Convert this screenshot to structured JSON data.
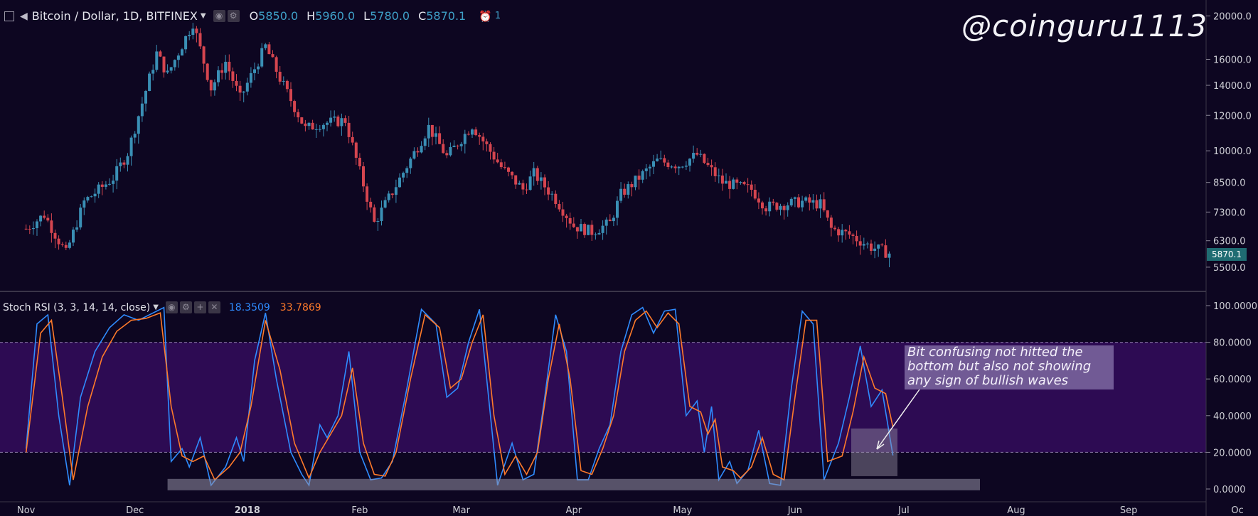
{
  "header": {
    "symbol": "Bitcoin / Dollar, 1D, BITFINEX",
    "o_label": "O",
    "o_value": "5850.0",
    "h_label": "H",
    "h_value": "5960.0",
    "l_label": "L",
    "l_value": "5780.0",
    "c_label": "C",
    "c_value": "5870.1",
    "alert_count": "1"
  },
  "watermark": "@coinguru1113",
  "indicator": {
    "label": "Stoch RSI (3, 3, 14, 14, close)",
    "k_value": "18.3509",
    "d_value": "33.7869"
  },
  "annotation": "Bit confusing not hitted the bottom but also not showing any sign of bullish waves",
  "colors": {
    "background": "#0d0621",
    "up": "#3a8fb5",
    "down": "#d5454f",
    "k_line": "#2f8cff",
    "d_line": "#ff7a2a",
    "band": "#2d0b53"
  },
  "chart_data": [
    {
      "type": "candlestick",
      "scale": "log",
      "x_labels": [
        "Nov",
        "Dec",
        "2018",
        "Feb",
        "Mar",
        "Apr",
        "May",
        "Jun",
        "Jul",
        "Aug",
        "Sep",
        "Oc"
      ],
      "y_ticks": [
        "20000.0",
        "16000.0",
        "14000.0",
        "12000.0",
        "10000.0",
        "8500.0",
        "7300.0",
        "6300.0",
        "5500.0"
      ],
      "last_price_label": "5870.1",
      "ylim": [
        5000,
        21000
      ],
      "close_path": [
        {
          "date": "2017-11-01",
          "close": 6700
        },
        {
          "date": "2017-11-06",
          "close": 7200
        },
        {
          "date": "2017-11-12",
          "close": 5900
        },
        {
          "date": "2017-11-17",
          "close": 7700
        },
        {
          "date": "2017-11-25",
          "close": 8700
        },
        {
          "date": "2017-11-29",
          "close": 9900
        },
        {
          "date": "2017-12-07",
          "close": 16500
        },
        {
          "date": "2017-12-10",
          "close": 14800
        },
        {
          "date": "2017-12-17",
          "close": 19300
        },
        {
          "date": "2017-12-22",
          "close": 13800
        },
        {
          "date": "2017-12-26",
          "close": 15800
        },
        {
          "date": "2017-12-30",
          "close": 13100
        },
        {
          "date": "2018-01-06",
          "close": 17100
        },
        {
          "date": "2018-01-10",
          "close": 14500
        },
        {
          "date": "2018-01-17",
          "close": 11200
        },
        {
          "date": "2018-01-21",
          "close": 11500
        },
        {
          "date": "2018-01-28",
          "close": 11700
        },
        {
          "date": "2018-02-05",
          "close": 6900
        },
        {
          "date": "2018-02-10",
          "close": 8100
        },
        {
          "date": "2018-02-20",
          "close": 11300
        },
        {
          "date": "2018-02-25",
          "close": 9700
        },
        {
          "date": "2018-03-04",
          "close": 11400
        },
        {
          "date": "2018-03-12",
          "close": 9200
        },
        {
          "date": "2018-03-18",
          "close": 8200
        },
        {
          "date": "2018-03-21",
          "close": 8900
        },
        {
          "date": "2018-03-27",
          "close": 7800
        },
        {
          "date": "2018-04-01",
          "close": 6800
        },
        {
          "date": "2018-04-06",
          "close": 6600
        },
        {
          "date": "2018-04-11",
          "close": 6900
        },
        {
          "date": "2018-04-14",
          "close": 8000
        },
        {
          "date": "2018-04-24",
          "close": 9500
        },
        {
          "date": "2018-04-30",
          "close": 9300
        },
        {
          "date": "2018-05-05",
          "close": 9800
        },
        {
          "date": "2018-05-12",
          "close": 8500
        },
        {
          "date": "2018-05-20",
          "close": 8200
        },
        {
          "date": "2018-05-24",
          "close": 7500
        },
        {
          "date": "2018-06-03",
          "close": 7700
        },
        {
          "date": "2018-06-08",
          "close": 7600
        },
        {
          "date": "2018-06-11",
          "close": 6700
        },
        {
          "date": "2018-06-16",
          "close": 6500
        },
        {
          "date": "2018-06-22",
          "close": 6100
        },
        {
          "date": "2018-06-28",
          "close": 5870
        }
      ]
    },
    {
      "type": "line",
      "title": "Stoch RSI (3, 3, 14, 14, close)",
      "y_ticks": [
        "100.0000",
        "80.0000",
        "60.0000",
        "40.0000",
        "20.0000",
        "0.0000"
      ],
      "ylim": [
        -5,
        105
      ],
      "bands": [
        20,
        80
      ],
      "series": [
        {
          "name": "K",
          "values": [
            {
              "date": "2017-11-01",
              "value": 22
            },
            {
              "date": "2017-11-04",
              "value": 90
            },
            {
              "date": "2017-11-07",
              "value": 95
            },
            {
              "date": "2017-11-10",
              "value": 40
            },
            {
              "date": "2017-11-13",
              "value": 2
            },
            {
              "date": "2017-11-16",
              "value": 50
            },
            {
              "date": "2017-11-20",
              "value": 75
            },
            {
              "date": "2017-11-24",
              "value": 88
            },
            {
              "date": "2017-11-28",
              "value": 95
            },
            {
              "date": "2017-12-02",
              "value": 92
            },
            {
              "date": "2017-12-06",
              "value": 96
            },
            {
              "date": "2017-12-09",
              "value": 99
            },
            {
              "date": "2017-12-11",
              "value": 15
            },
            {
              "date": "2017-12-14",
              "value": 22
            },
            {
              "date": "2017-12-16",
              "value": 12
            },
            {
              "date": "2017-12-19",
              "value": 28
            },
            {
              "date": "2017-12-22",
              "value": 2
            },
            {
              "date": "2017-12-26",
              "value": 12
            },
            {
              "date": "2017-12-29",
              "value": 28
            },
            {
              "date": "2017-12-31",
              "value": 15
            },
            {
              "date": "2018-01-03",
              "value": 70
            },
            {
              "date": "2018-01-06",
              "value": 96
            },
            {
              "date": "2018-01-09",
              "value": 60
            },
            {
              "date": "2018-01-13",
              "value": 20
            },
            {
              "date": "2018-01-16",
              "value": 8
            },
            {
              "date": "2018-01-18",
              "value": 2
            },
            {
              "date": "2018-01-21",
              "value": 35
            },
            {
              "date": "2018-01-23",
              "value": 28
            },
            {
              "date": "2018-01-26",
              "value": 40
            },
            {
              "date": "2018-01-29",
              "value": 75
            },
            {
              "date": "2018-02-01",
              "value": 20
            },
            {
              "date": "2018-02-04",
              "value": 5
            },
            {
              "date": "2018-02-07",
              "value": 6
            },
            {
              "date": "2018-02-10",
              "value": 15
            },
            {
              "date": "2018-02-14",
              "value": 55
            },
            {
              "date": "2018-02-18",
              "value": 98
            },
            {
              "date": "2018-02-22",
              "value": 90
            },
            {
              "date": "2018-02-25",
              "value": 50
            },
            {
              "date": "2018-02-28",
              "value": 55
            },
            {
              "date": "2018-03-03",
              "value": 80
            },
            {
              "date": "2018-03-06",
              "value": 98
            },
            {
              "date": "2018-03-08",
              "value": 60
            },
            {
              "date": "2018-03-11",
              "value": 2
            },
            {
              "date": "2018-03-15",
              "value": 25
            },
            {
              "date": "2018-03-18",
              "value": 5
            },
            {
              "date": "2018-03-21",
              "value": 8
            },
            {
              "date": "2018-03-24",
              "value": 50
            },
            {
              "date": "2018-03-27",
              "value": 95
            },
            {
              "date": "2018-03-30",
              "value": 75
            },
            {
              "date": "2018-04-02",
              "value": 5
            },
            {
              "date": "2018-04-05",
              "value": 5
            },
            {
              "date": "2018-04-08",
              "value": 22
            },
            {
              "date": "2018-04-11",
              "value": 35
            },
            {
              "date": "2018-04-14",
              "value": 75
            },
            {
              "date": "2018-04-17",
              "value": 95
            },
            {
              "date": "2018-04-20",
              "value": 99
            },
            {
              "date": "2018-04-23",
              "value": 85
            },
            {
              "date": "2018-04-26",
              "value": 97
            },
            {
              "date": "2018-04-29",
              "value": 98
            },
            {
              "date": "2018-05-02",
              "value": 40
            },
            {
              "date": "2018-05-05",
              "value": 48
            },
            {
              "date": "2018-05-07",
              "value": 20
            },
            {
              "date": "2018-05-09",
              "value": 45
            },
            {
              "date": "2018-05-11",
              "value": 5
            },
            {
              "date": "2018-05-14",
              "value": 15
            },
            {
              "date": "2018-05-16",
              "value": 3
            },
            {
              "date": "2018-05-19",
              "value": 10
            },
            {
              "date": "2018-05-22",
              "value": 32
            },
            {
              "date": "2018-05-25",
              "value": 3
            },
            {
              "date": "2018-05-28",
              "value": 2
            },
            {
              "date": "2018-05-31",
              "value": 55
            },
            {
              "date": "2018-06-03",
              "value": 97
            },
            {
              "date": "2018-06-06",
              "value": 90
            },
            {
              "date": "2018-06-09",
              "value": 5
            },
            {
              "date": "2018-06-13",
              "value": 25
            },
            {
              "date": "2018-06-16",
              "value": 50
            },
            {
              "date": "2018-06-19",
              "value": 78
            },
            {
              "date": "2018-06-22",
              "value": 45
            },
            {
              "date": "2018-06-25",
              "value": 54
            },
            {
              "date": "2018-06-28",
              "value": 18.35
            }
          ]
        },
        {
          "name": "D",
          "values": [
            {
              "date": "2017-11-01",
              "value": 20
            },
            {
              "date": "2017-11-05",
              "value": 85
            },
            {
              "date": "2017-11-08",
              "value": 92
            },
            {
              "date": "2017-11-11",
              "value": 50
            },
            {
              "date": "2017-11-14",
              "value": 5
            },
            {
              "date": "2017-11-18",
              "value": 45
            },
            {
              "date": "2017-11-22",
              "value": 72
            },
            {
              "date": "2017-11-26",
              "value": 86
            },
            {
              "date": "2017-11-30",
              "value": 92
            },
            {
              "date": "2017-12-04",
              "value": 93
            },
            {
              "date": "2017-12-08",
              "value": 96
            },
            {
              "date": "2017-12-11",
              "value": 45
            },
            {
              "date": "2017-12-14",
              "value": 18
            },
            {
              "date": "2017-12-17",
              "value": 15
            },
            {
              "date": "2017-12-20",
              "value": 18
            },
            {
              "date": "2017-12-23",
              "value": 5
            },
            {
              "date": "2017-12-27",
              "value": 12
            },
            {
              "date": "2017-12-30",
              "value": 20
            },
            {
              "date": "2018-01-02",
              "value": 45
            },
            {
              "date": "2018-01-06",
              "value": 92
            },
            {
              "date": "2018-01-10",
              "value": 65
            },
            {
              "date": "2018-01-14",
              "value": 25
            },
            {
              "date": "2018-01-18",
              "value": 6
            },
            {
              "date": "2018-01-21",
              "value": 20
            },
            {
              "date": "2018-01-24",
              "value": 30
            },
            {
              "date": "2018-01-27",
              "value": 40
            },
            {
              "date": "2018-01-30",
              "value": 66
            },
            {
              "date": "2018-02-02",
              "value": 25
            },
            {
              "date": "2018-02-05",
              "value": 8
            },
            {
              "date": "2018-02-08",
              "value": 7
            },
            {
              "date": "2018-02-11",
              "value": 20
            },
            {
              "date": "2018-02-15",
              "value": 60
            },
            {
              "date": "2018-02-19",
              "value": 95
            },
            {
              "date": "2018-02-23",
              "value": 88
            },
            {
              "date": "2018-02-26",
              "value": 55
            },
            {
              "date": "2018-03-01",
              "value": 60
            },
            {
              "date": "2018-03-04",
              "value": 80
            },
            {
              "date": "2018-03-07",
              "value": 95
            },
            {
              "date": "2018-03-10",
              "value": 40
            },
            {
              "date": "2018-03-13",
              "value": 8
            },
            {
              "date": "2018-03-16",
              "value": 18
            },
            {
              "date": "2018-03-19",
              "value": 8
            },
            {
              "date": "2018-03-22",
              "value": 20
            },
            {
              "date": "2018-03-25",
              "value": 60
            },
            {
              "date": "2018-03-28",
              "value": 90
            },
            {
              "date": "2018-03-31",
              "value": 60
            },
            {
              "date": "2018-04-03",
              "value": 10
            },
            {
              "date": "2018-04-06",
              "value": 8
            },
            {
              "date": "2018-04-09",
              "value": 22
            },
            {
              "date": "2018-04-12",
              "value": 40
            },
            {
              "date": "2018-04-15",
              "value": 75
            },
            {
              "date": "2018-04-18",
              "value": 92
            },
            {
              "date": "2018-04-21",
              "value": 97
            },
            {
              "date": "2018-04-24",
              "value": 88
            },
            {
              "date": "2018-04-27",
              "value": 96
            },
            {
              "date": "2018-04-30",
              "value": 90
            },
            {
              "date": "2018-05-03",
              "value": 45
            },
            {
              "date": "2018-05-06",
              "value": 42
            },
            {
              "date": "2018-05-08",
              "value": 30
            },
            {
              "date": "2018-05-10",
              "value": 38
            },
            {
              "date": "2018-05-12",
              "value": 12
            },
            {
              "date": "2018-05-15",
              "value": 10
            },
            {
              "date": "2018-05-17",
              "value": 6
            },
            {
              "date": "2018-05-20",
              "value": 12
            },
            {
              "date": "2018-05-23",
              "value": 28
            },
            {
              "date": "2018-05-26",
              "value": 8
            },
            {
              "date": "2018-05-29",
              "value": 5
            },
            {
              "date": "2018-06-01",
              "value": 50
            },
            {
              "date": "2018-06-04",
              "value": 92
            },
            {
              "date": "2018-06-07",
              "value": 92
            },
            {
              "date": "2018-06-10",
              "value": 15
            },
            {
              "date": "2018-06-14",
              "value": 18
            },
            {
              "date": "2018-06-17",
              "value": 42
            },
            {
              "date": "2018-06-20",
              "value": 72
            },
            {
              "date": "2018-06-23",
              "value": 55
            },
            {
              "date": "2018-06-26",
              "value": 52
            },
            {
              "date": "2018-06-28",
              "value": 33.79
            }
          ]
        }
      ]
    }
  ]
}
